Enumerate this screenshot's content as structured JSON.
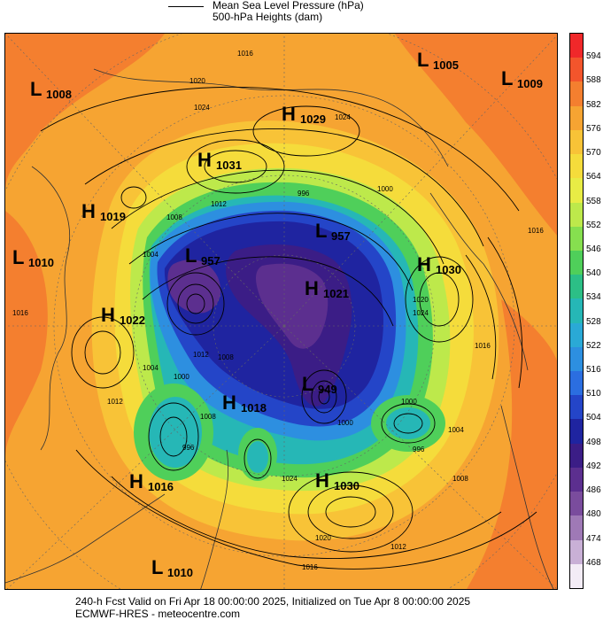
{
  "header": {
    "legend_line1": "Mean Sea Level Pressure (hPa)",
    "legend_line2": "500-hPa Heights (dam)"
  },
  "colorbar": {
    "levels": [
      "594",
      "588",
      "582",
      "576",
      "570",
      "564",
      "558",
      "552",
      "546",
      "540",
      "534",
      "528",
      "522",
      "516",
      "510",
      "504",
      "498",
      "492",
      "486",
      "480",
      "474",
      "468"
    ],
    "colors": [
      "#f0282a",
      "#f3552c",
      "#f47f2f",
      "#f6a432",
      "#f8c337",
      "#f5dc3b",
      "#e8ec45",
      "#bde94b",
      "#86df4f",
      "#4fcf5a",
      "#2cbf86",
      "#26b7b6",
      "#2aa9d6",
      "#2d8fe0",
      "#2b6ee0",
      "#2445c8",
      "#1f24a0",
      "#3b1d86",
      "#5c2f8f",
      "#7a4c9d",
      "#9f79b6",
      "#c9b0d6",
      "#f3ecf6"
    ]
  },
  "systems": [
    {
      "type": "L",
      "value": "1008"
    },
    {
      "type": "L",
      "value": "1005"
    },
    {
      "type": "L",
      "value": "1009"
    },
    {
      "type": "H",
      "value": "1029"
    },
    {
      "type": "H",
      "value": "1031"
    },
    {
      "type": "H",
      "value": "1019"
    },
    {
      "type": "L",
      "value": "1010"
    },
    {
      "type": "L",
      "value": "957"
    },
    {
      "type": "L",
      "value": "957"
    },
    {
      "type": "H",
      "value": "1021"
    },
    {
      "type": "H",
      "value": "1030"
    },
    {
      "type": "H",
      "value": "1022"
    },
    {
      "type": "H",
      "value": "1018"
    },
    {
      "type": "L",
      "value": "949"
    },
    {
      "type": "H",
      "value": "1016"
    },
    {
      "type": "H",
      "value": "1030"
    },
    {
      "type": "L",
      "value": "1010"
    }
  ],
  "isobar_labels": [
    "1016",
    "1020",
    "1024",
    "1024",
    "1012",
    "1008",
    "1004",
    "996",
    "1000",
    "1016",
    "1020",
    "1024",
    "1016",
    "1012",
    "1008",
    "1004",
    "1000",
    "1008",
    "1012",
    "1016",
    "1000",
    "1004",
    "996",
    "1024",
    "1020",
    "1016",
    "1012",
    "1008",
    "1000",
    "996"
  ],
  "footer": {
    "line1": "240-h Fcst Valid on Fri Apr 18 00:00:00 2025, Initialized on Tue Apr  8 00:00:00 2025",
    "line2": "ECMWF-HRES  - meteocentre.com"
  }
}
